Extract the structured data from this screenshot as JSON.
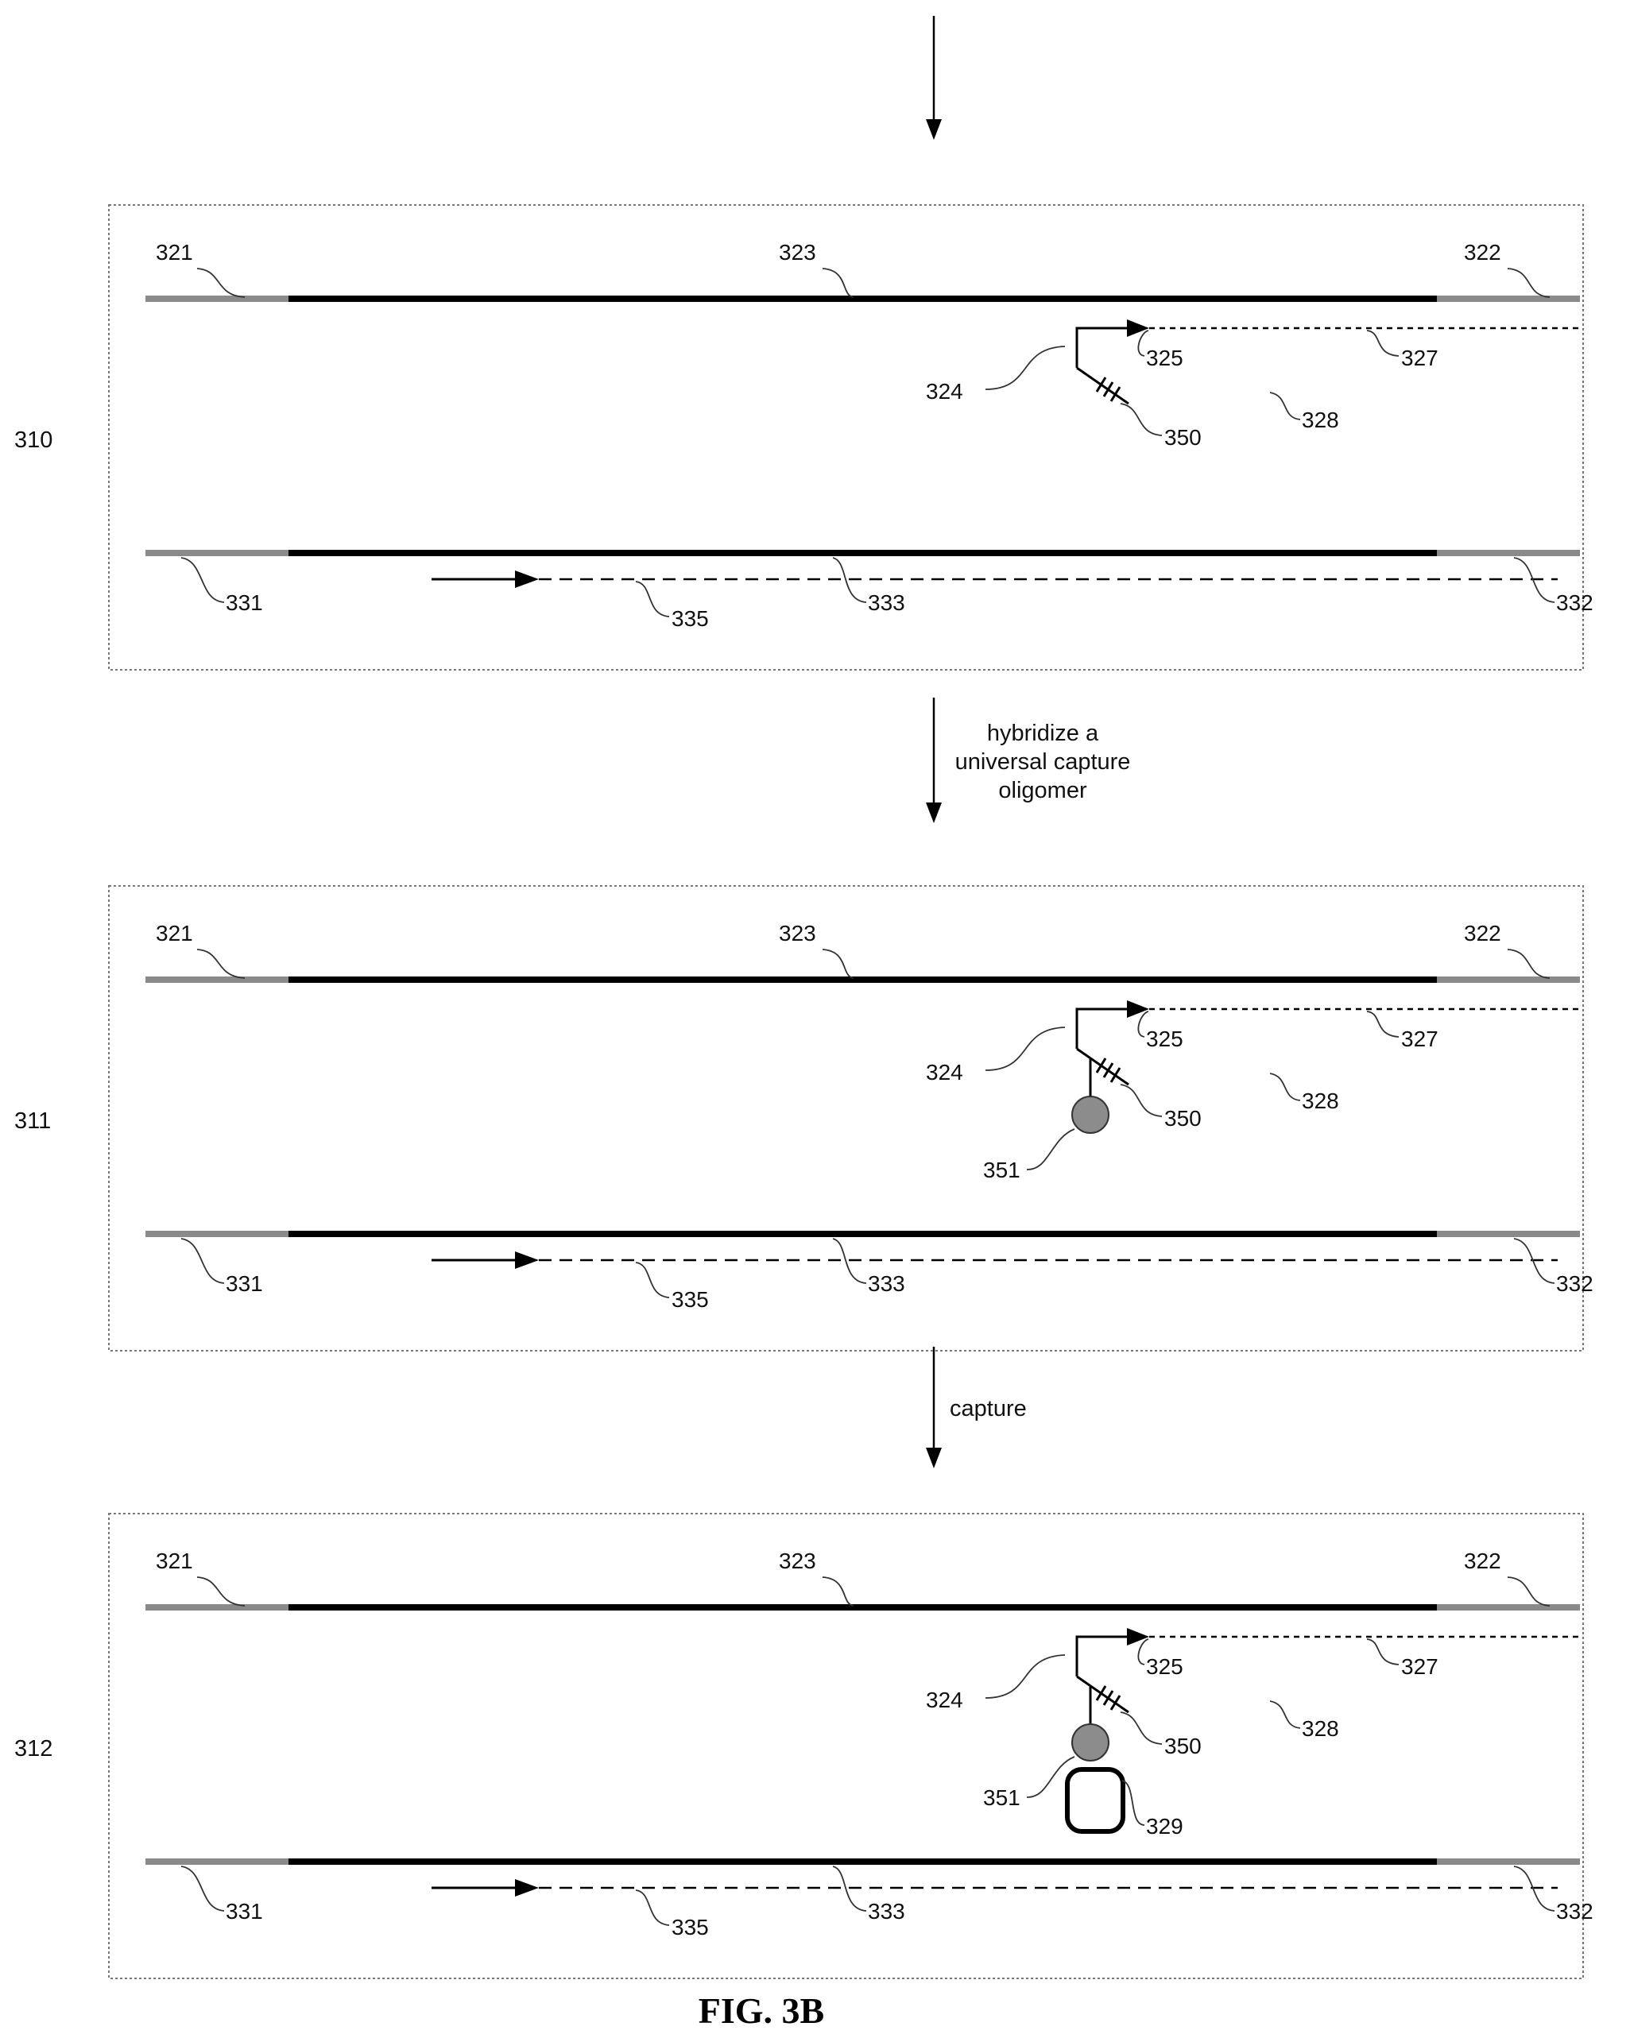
{
  "figure_label": "FIG. 3B",
  "transitions": {
    "step1": "hybridize a\nuniversal capture\noligomer",
    "step2": "capture"
  },
  "panels": [
    {
      "id": "310",
      "labels": {
        "a": "321",
        "b": "323",
        "c": "322",
        "d": "325",
        "e": "327",
        "f": "324",
        "g": "350",
        "h": "328",
        "i": "331",
        "j": "333",
        "k": "332",
        "l": "335"
      }
    },
    {
      "id": "311",
      "labels": {
        "a": "321",
        "b": "323",
        "c": "322",
        "d": "325",
        "e": "327",
        "f": "324",
        "g": "350",
        "h": "328",
        "i": "331",
        "j": "333",
        "k": "332",
        "l": "335",
        "m": "351"
      }
    },
    {
      "id": "312",
      "labels": {
        "a": "321",
        "b": "323",
        "c": "322",
        "d": "325",
        "e": "327",
        "f": "324",
        "g": "350",
        "h": "328",
        "i": "331",
        "j": "333",
        "k": "332",
        "l": "335",
        "m": "351",
        "n": "329"
      }
    }
  ],
  "colors": {
    "strand_end": "#8a8a8a",
    "strand_mid": "#000000",
    "capture_bead": "#8c8c8c"
  }
}
